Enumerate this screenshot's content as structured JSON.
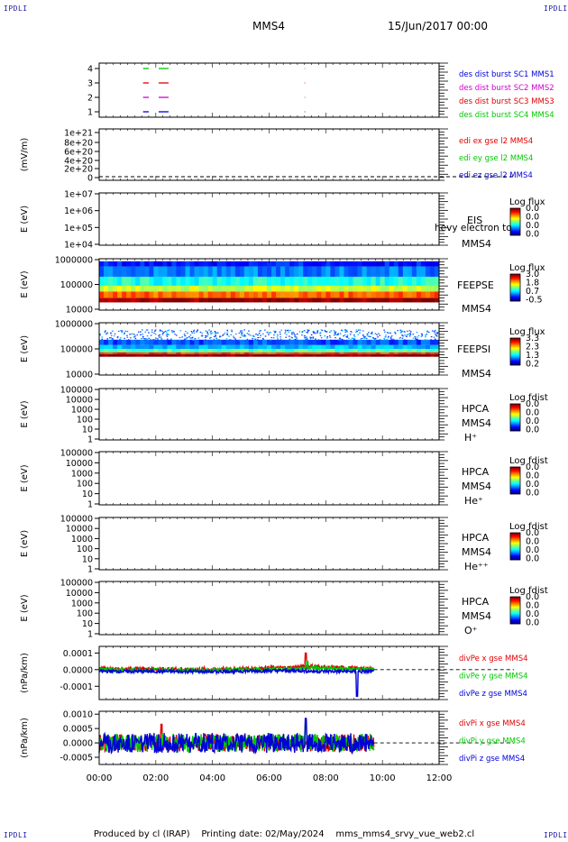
{
  "corners": {
    "top_left": "IPDLI",
    "top_right": "IPDLI",
    "bottom_left": "IPDLI",
    "bottom_right": "IPDLI"
  },
  "header": {
    "spacecraft": "MMS4",
    "date": "15/Jun/2017 00:00"
  },
  "footer": {
    "produced_by": "Produced by cl (IRAP)",
    "printing_date": "Printing date: 02/May/2024",
    "script": "mms_mms4_srvy_vue_web2.cl"
  },
  "colors": {
    "red": "#e00000",
    "green": "#00c800",
    "blue": "#0000d8",
    "magenta": "#d000d0"
  },
  "time_axis": {
    "ticks": [
      "00:00",
      "02:00",
      "04:00",
      "06:00",
      "08:00",
      "10:00",
      "12:00"
    ],
    "range_hours": [
      0,
      12
    ]
  },
  "chart_data": [
    {
      "type": "line",
      "panel": "burst-intervals",
      "ylabel": "",
      "yticks": [
        "4",
        "3",
        "2",
        "1"
      ],
      "ylim": [
        0.5,
        4.5
      ],
      "series": [
        {
          "name": "des dist burst SC1 MMS1",
          "color": "#0000d8",
          "level": 1,
          "intervals_h": [
            [
              1.55,
              1.75
            ],
            [
              2.1,
              2.45
            ],
            [
              7.25,
              7.27
            ]
          ]
        },
        {
          "name": "des dist burst SC2 MMS2",
          "color": "#d000d0",
          "level": 2,
          "intervals_h": [
            [
              1.55,
              1.75
            ],
            [
              2.1,
              2.45
            ],
            [
              7.25,
              7.27
            ]
          ]
        },
        {
          "name": "des dist burst SC3 MMS3",
          "color": "#e00000",
          "level": 3,
          "intervals_h": [
            [
              1.55,
              1.75
            ],
            [
              2.1,
              2.45
            ],
            [
              7.25,
              7.27
            ]
          ]
        },
        {
          "name": "des dist burst SC4 MMS4",
          "color": "#00c800",
          "level": 4,
          "intervals_h": [
            [
              1.55,
              1.75
            ],
            [
              2.1,
              2.45
            ],
            [
              7.25,
              7.27
            ]
          ]
        }
      ]
    },
    {
      "type": "line",
      "panel": "edi-field",
      "ylabel": "(mV/m)",
      "yticks": [
        "1e+21",
        "8e+20",
        "6e+20",
        "4e+20",
        "2e+20",
        "0"
      ],
      "ylim": [
        0,
        1e+21
      ],
      "series": [
        {
          "name": "edi ex gse l2 MMS4",
          "color": "#e00000",
          "values": []
        },
        {
          "name": "edi ey gse l2 MMS4",
          "color": "#00c800",
          "values": []
        },
        {
          "name": "edi ez gse l2 MMS4",
          "color": "#0000d8",
          "values": []
        }
      ],
      "zero_line": true
    },
    {
      "type": "heatmap",
      "panel": "eis",
      "ylabel": "E (eV)",
      "yticks": [
        "1e+07",
        "1e+06",
        "1e+05",
        "1e+04"
      ],
      "ylog": [
        4,
        7
      ],
      "labels": [
        "EIS",
        "MMS4"
      ],
      "overlay_text": "hevy electron to",
      "colorbar": {
        "title": "Log flux",
        "ticks": [
          "0.0",
          "0.0",
          "0.0",
          "0.0"
        ]
      },
      "filled": false
    },
    {
      "type": "heatmap",
      "panel": "feeps-electron",
      "ylabel": "E (eV)",
      "yticks": [
        "1000000",
        "100000",
        "10000"
      ],
      "ylog": [
        4,
        6
      ],
      "labels": [
        "FEEPSE",
        "MMS4"
      ],
      "colorbar": {
        "title": "Log flux",
        "ticks": [
          "3.0",
          "1.8",
          "0.7",
          "-0.5"
        ]
      },
      "filled": true,
      "time_range_h": [
        0,
        12
      ],
      "profile": [
        {
          "log_e_min": 4.3,
          "log_e_max": 4.48,
          "level": 0.98
        },
        {
          "log_e_min": 4.48,
          "log_e_max": 4.72,
          "level": 0.78
        },
        {
          "log_e_min": 4.72,
          "log_e_max": 4.95,
          "level": 0.58
        },
        {
          "log_e_min": 4.95,
          "log_e_max": 5.3,
          "level": 0.4
        },
        {
          "log_e_min": 5.3,
          "log_e_max": 5.7,
          "level": 0.25
        },
        {
          "log_e_min": 5.7,
          "log_e_max": 5.9,
          "level": 0.15
        }
      ]
    },
    {
      "type": "heatmap",
      "panel": "feeps-ion",
      "ylabel": "E (eV)",
      "yticks": [
        "1000000",
        "100000",
        "10000"
      ],
      "ylog": [
        4,
        6
      ],
      "labels": [
        "FEEPSI",
        "MMS4"
      ],
      "colorbar": {
        "title": "Log flux",
        "ticks": [
          "3.3",
          "2.3",
          "1.3",
          "0.2"
        ]
      },
      "filled": true,
      "time_range_h": [
        0,
        12
      ],
      "profile": [
        {
          "log_e_min": 4.7,
          "log_e_max": 4.8,
          "level": 1.0
        },
        {
          "log_e_min": 4.8,
          "log_e_max": 4.87,
          "level": 0.82
        },
        {
          "log_e_min": 4.87,
          "log_e_max": 5.0,
          "level": 0.45
        },
        {
          "log_e_min": 5.0,
          "log_e_max": 5.15,
          "level": 0.3
        },
        {
          "log_e_min": 5.15,
          "log_e_max": 5.35,
          "level": 0.2
        }
      ],
      "speckle": {
        "log_e_min": 5.35,
        "log_e_max": 5.75,
        "level": 0.15
      }
    },
    {
      "type": "heatmap",
      "panel": "hpca-h",
      "ylabel": "E (eV)",
      "yticks": [
        "100000",
        "10000",
        "1000",
        "100",
        "10",
        "1"
      ],
      "labels": [
        "HPCA",
        "MMS4",
        "H⁺"
      ],
      "colorbar": {
        "title": "Log fdist",
        "ticks": [
          "0.0",
          "0.0",
          "0.0",
          "0.0"
        ]
      },
      "filled": false
    },
    {
      "type": "heatmap",
      "panel": "hpca-he",
      "ylabel": "E (eV)",
      "yticks": [
        "100000",
        "10000",
        "1000",
        "100",
        "10",
        "1"
      ],
      "labels": [
        "HPCA",
        "MMS4",
        "He⁺"
      ],
      "colorbar": {
        "title": "Log fdist",
        "ticks": [
          "0.0",
          "0.0",
          "0.0",
          "0.0"
        ]
      },
      "filled": false
    },
    {
      "type": "heatmap",
      "panel": "hpca-he2",
      "ylabel": "E (eV)",
      "yticks": [
        "100000",
        "10000",
        "1000",
        "100",
        "10",
        "1"
      ],
      "labels": [
        "HPCA",
        "MMS4",
        "He⁺⁺"
      ],
      "colorbar": {
        "title": "Log fdist",
        "ticks": [
          "0.0",
          "0.0",
          "0.0",
          "0.0"
        ]
      },
      "filled": false
    },
    {
      "type": "heatmap",
      "panel": "hpca-o",
      "ylabel": "E (eV)",
      "yticks": [
        "100000",
        "10000",
        "1000",
        "100",
        "10",
        "1"
      ],
      "labels": [
        "HPCA",
        "MMS4",
        "O⁺"
      ],
      "colorbar": {
        "title": "Log fdist",
        "ticks": [
          "0.0",
          "0.0",
          "0.0",
          "0.0"
        ]
      },
      "filled": false
    },
    {
      "type": "line",
      "panel": "divpe",
      "ylabel": "(nPa/km)",
      "yticks": [
        "0.0001",
        "0.0000",
        "-0.0001"
      ],
      "yvals": [
        0.0001,
        0,
        -0.0001
      ],
      "ylim": [
        -0.00018,
        0.00014
      ],
      "data_end_h": 9.7,
      "zero_line": true,
      "series": [
        {
          "name": "divPe x gse MMS4",
          "color": "#e00000",
          "amp": 1.2e-05,
          "means": [
            [
              0,
              5e-06
            ],
            [
              4,
              2e-06
            ],
            [
              6.8,
              1.2e-05
            ],
            [
              7.4,
              2e-05
            ],
            [
              8.2,
              1.2e-05
            ],
            [
              9.7,
              5e-06
            ]
          ],
          "spike": [
            7.3,
            0.0001
          ]
        },
        {
          "name": "divPe y gse MMS4",
          "color": "#00c800",
          "amp": 1.2e-05,
          "means": [
            [
              0,
              0.0
            ],
            [
              4,
              -3e-06
            ],
            [
              6.8,
              3e-06
            ],
            [
              7.6,
              1e-05
            ],
            [
              9.7,
              0.0
            ]
          ],
          "spike": [
            7.35,
            5e-05
          ]
        },
        {
          "name": "divPe z gse MMS4",
          "color": "#0000d8",
          "amp": 1e-05,
          "means": [
            [
              0,
              -1e-05
            ],
            [
              4,
              -1.2e-05
            ],
            [
              6.8,
              -5e-06
            ],
            [
              7.6,
              -1e-05
            ],
            [
              9.7,
              -1.2e-05
            ]
          ],
          "spike": [
            9.1,
            -0.00016
          ]
        }
      ]
    },
    {
      "type": "line",
      "panel": "divpi",
      "ylabel": "(nPa/km)",
      "yticks": [
        "0.0010",
        "0.0005",
        "0.0000",
        "-0.0005"
      ],
      "yvals": [
        0.001,
        0.0005,
        0,
        -0.0005
      ],
      "ylim": [
        -0.00075,
        0.0011
      ],
      "data_end_h": 9.7,
      "zero_line": true,
      "series": [
        {
          "name": "divPi x gse MMS4",
          "color": "#e00000",
          "amp": 0.0003,
          "means": [
            [
              0,
              0.0
            ],
            [
              9.7,
              0.0
            ]
          ],
          "spike": [
            2.2,
            0.00065
          ]
        },
        {
          "name": "divPi y gse MMS4",
          "color": "#00c800",
          "amp": 0.00032,
          "means": [
            [
              0,
              0.0
            ],
            [
              9.7,
              0.0
            ]
          ],
          "spike": [
            7.3,
            0.0007
          ]
        },
        {
          "name": "divPi z gse MMS4",
          "color": "#0000d8",
          "amp": 0.00035,
          "means": [
            [
              0,
              0.0
            ],
            [
              9.7,
              0.0
            ]
          ],
          "spike": [
            7.3,
            0.00085
          ]
        }
      ]
    }
  ]
}
